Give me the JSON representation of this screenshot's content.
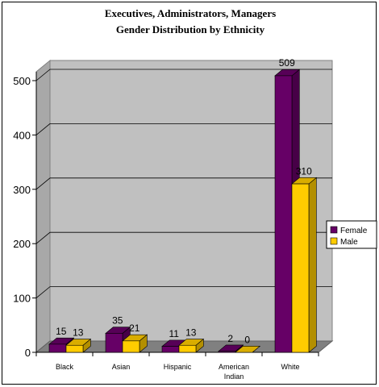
{
  "chart_data": {
    "type": "bar",
    "title": "Executives, Administrators, Managers",
    "subtitle": "Gender Distribution by Ethnicity",
    "categories": [
      "Black",
      "Asian",
      "Hispanic",
      "American Indian",
      "White"
    ],
    "category_lines": [
      [
        "Black"
      ],
      [
        "Asian"
      ],
      [
        "Hispanic"
      ],
      [
        "American",
        "Indian"
      ],
      [
        "White"
      ]
    ],
    "series": [
      {
        "name": "Female",
        "values": [
          15,
          35,
          11,
          2,
          509
        ],
        "color": "#660066"
      },
      {
        "name": "Male",
        "values": [
          13,
          21,
          13,
          0,
          310
        ],
        "color": "#ffcc00"
      }
    ],
    "ylim": [
      0,
      500
    ],
    "yticks": [
      0,
      100,
      200,
      300,
      400,
      500
    ],
    "grid": true,
    "style": "3d-clustered-column",
    "wall_color": "#c0c0c0",
    "floor_color": "#808080",
    "legend": "right"
  }
}
